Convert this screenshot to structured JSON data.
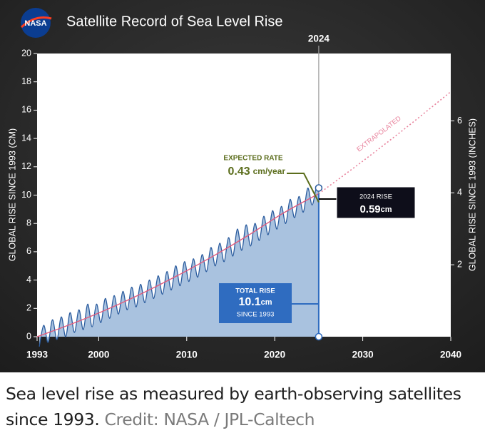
{
  "chart_data": {
    "type": "line",
    "logo": "NASA",
    "title": "Satellite Record of Sea Level Rise",
    "ylabel": "GLOBAL RISE SINCE 1993 (CM)",
    "y2label": "GLOBAL RISE SINCE 1993 (INCHES)",
    "xlim": [
      1993,
      2040
    ],
    "xticks": [
      1993,
      2000,
      2010,
      2020,
      2030,
      2040
    ],
    "ylim": [
      0,
      20
    ],
    "yticks": [
      0,
      2,
      4,
      6,
      8,
      10,
      12,
      14,
      16,
      18,
      20
    ],
    "y2lim": [
      0,
      7.874
    ],
    "y2ticks": [
      2,
      4,
      6
    ],
    "marker": {
      "value": 2025,
      "label": "2024"
    },
    "series": [
      {
        "color": "#2b5c9e",
        "fill": "#a9c2df",
        "x": [
          1993.25,
          1993.75,
          1994.25,
          1994.75,
          1995.25,
          1995.75,
          1996.25,
          1996.75,
          1997.25,
          1997.75,
          1998.25,
          1998.75,
          1999.25,
          1999.75,
          2000.25,
          2000.75,
          2001.25,
          2001.75,
          2002.25,
          2002.75,
          2003.25,
          2003.75,
          2004.25,
          2004.75,
          2005.25,
          2005.75,
          2006.25,
          2006.75,
          2007.25,
          2007.75,
          2008.25,
          2008.75,
          2009.25,
          2009.75,
          2010.25,
          2010.75,
          2011.25,
          2011.75,
          2012.25,
          2012.75,
          2013.25,
          2013.75,
          2014.25,
          2014.75,
          2015.25,
          2015.75,
          2016.25,
          2016.75,
          2017.25,
          2017.75,
          2018.25,
          2018.75,
          2019.25,
          2019.75,
          2020.25,
          2020.75,
          2021.25,
          2021.75,
          2022.25,
          2022.75,
          2023.25,
          2023.75,
          2024.25,
          2024.75,
          2025
        ],
        "values": [
          -0.7,
          0.8,
          -0.4,
          1.2,
          -0.2,
          1.4,
          0.0,
          1.7,
          0.3,
          1.9,
          0.5,
          2.3,
          0.7,
          2.3,
          1.0,
          2.7,
          1.3,
          2.9,
          1.6,
          3.2,
          1.9,
          3.5,
          2.1,
          3.7,
          2.4,
          4.0,
          2.7,
          4.3,
          3.0,
          4.6,
          3.3,
          5.0,
          3.6,
          5.3,
          3.9,
          5.5,
          4.2,
          5.8,
          4.6,
          6.3,
          5.0,
          6.6,
          5.3,
          7.0,
          5.7,
          7.6,
          6.1,
          7.9,
          6.4,
          8.0,
          6.8,
          8.5,
          7.2,
          8.9,
          7.6,
          9.2,
          8.0,
          9.7,
          8.4,
          9.9,
          8.8,
          10.5,
          9.3,
          10.6,
          10.1
        ]
      },
      {
        "color": "#e25b7c",
        "x": [
          1993,
          1997,
          2001,
          2005,
          2009,
          2013,
          2017,
          2021,
          2025
        ],
        "values": [
          0,
          0.92,
          1.94,
          3.08,
          4.33,
          5.69,
          7.16,
          8.74,
          10.1
        ]
      },
      {
        "name": "EXTRAPOLATED",
        "color": "#e8819b",
        "dashed": true,
        "x": [
          2025,
          2030,
          2035,
          2040
        ],
        "values": [
          10.1,
          12.4,
          14.8,
          17.3
        ]
      }
    ],
    "rate_title": "EXPECTED RATE",
    "rate_value": "0.43",
    "rate_unit": "cm/year",
    "rise_title": "2024 RISE",
    "rise_value": "0.59",
    "rise_unit": "cm",
    "total_title": "TOTAL RISE",
    "total_rise": 10.1,
    "total_unit": "cm",
    "total_note": "SINCE 1993",
    "caption": "Sea level rise as measured by earth-observing satellites since 1993.",
    "credit": "Credit: NASA / JPL-Caltech"
  }
}
